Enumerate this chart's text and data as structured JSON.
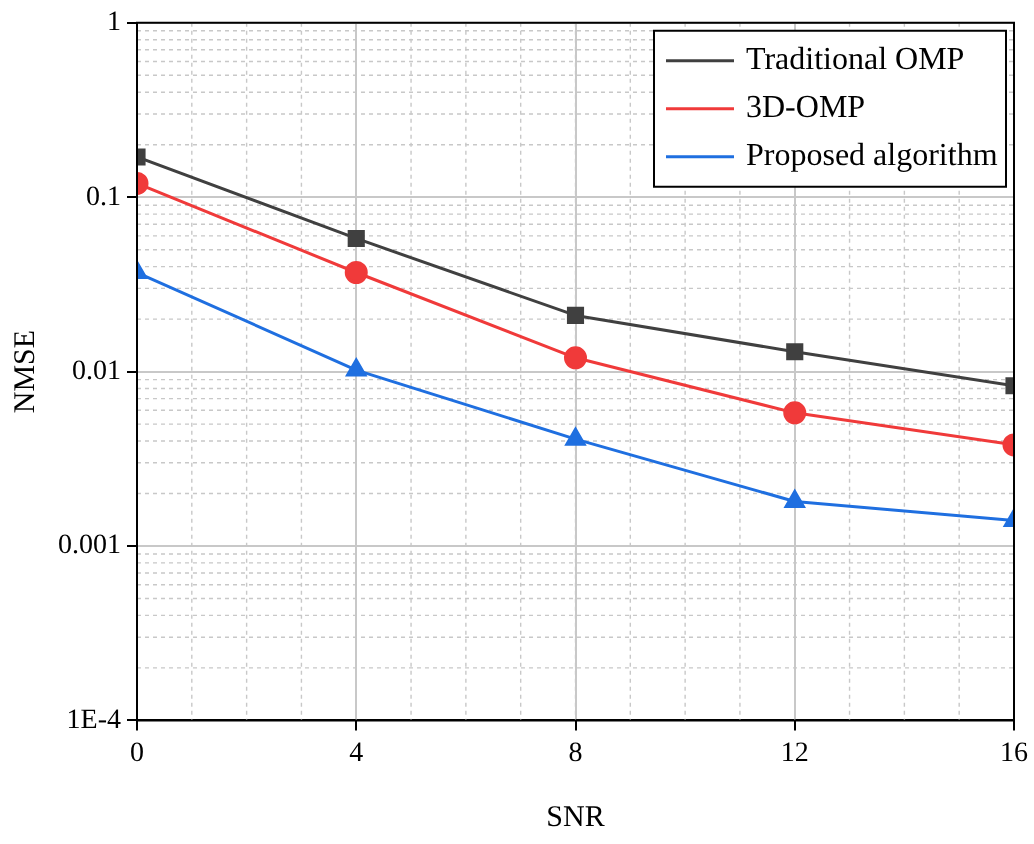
{
  "chart_data": {
    "type": "line",
    "xlabel": "SNR",
    "ylabel": "NMSE",
    "x": [
      0,
      4,
      8,
      12,
      16
    ],
    "xlim": [
      0,
      16
    ],
    "xticks": [
      0,
      4,
      8,
      12,
      16
    ],
    "ylim": [
      0.0001,
      1
    ],
    "yticks": [
      {
        "value": 0.0001,
        "label": "1E-4"
      },
      0.001,
      0.01,
      0.1,
      1
    ],
    "log": "y",
    "grid": true,
    "legend": "top right",
    "line_style": "solid",
    "series": [
      {
        "name": "Traditional OMP",
        "color": "#404040",
        "marker": "square",
        "values": [
          0.17,
          0.058,
          0.021,
          0.013,
          0.0083
        ]
      },
      {
        "name": "3D-OMP",
        "color": "#f03a3a",
        "marker": "circle",
        "values": [
          0.12,
          0.037,
          0.012,
          0.0058,
          0.0038
        ]
      },
      {
        "name": "Proposed algorithm",
        "color": "#1f6fe0",
        "marker": "triangle",
        "values": [
          0.037,
          0.0102,
          0.0041,
          0.0018,
          0.0014
        ]
      }
    ]
  }
}
